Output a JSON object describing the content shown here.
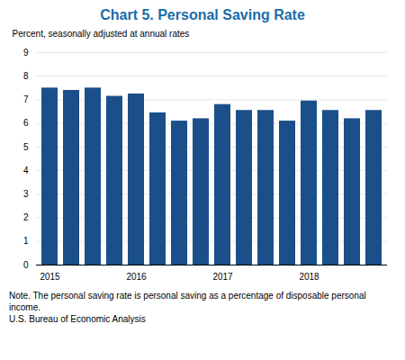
{
  "chart_data": {
    "type": "bar",
    "title": "Chart 5. Personal Saving Rate",
    "ylabel": "Percent, seasonally adjusted at annual rates",
    "categories": [
      "2015",
      null,
      null,
      null,
      "2016",
      null,
      null,
      null,
      "2017",
      null,
      null,
      null,
      "2018",
      null,
      null,
      null
    ],
    "values": [
      7.5,
      7.4,
      7.5,
      7.15,
      7.25,
      6.45,
      6.1,
      6.2,
      6.8,
      6.55,
      6.55,
      6.1,
      6.95,
      6.55,
      6.2,
      6.55
    ],
    "color": "#1B4F8A",
    "ylim": [
      0,
      9
    ],
    "yticks": [
      0,
      1,
      2,
      3,
      4,
      5,
      6,
      7,
      8,
      9
    ],
    "grid": true,
    "notes": [
      "Note. The personal saving rate is personal saving as a percentage of disposable personal income.",
      "U.S. Bureau of Economic Analysis"
    ]
  }
}
